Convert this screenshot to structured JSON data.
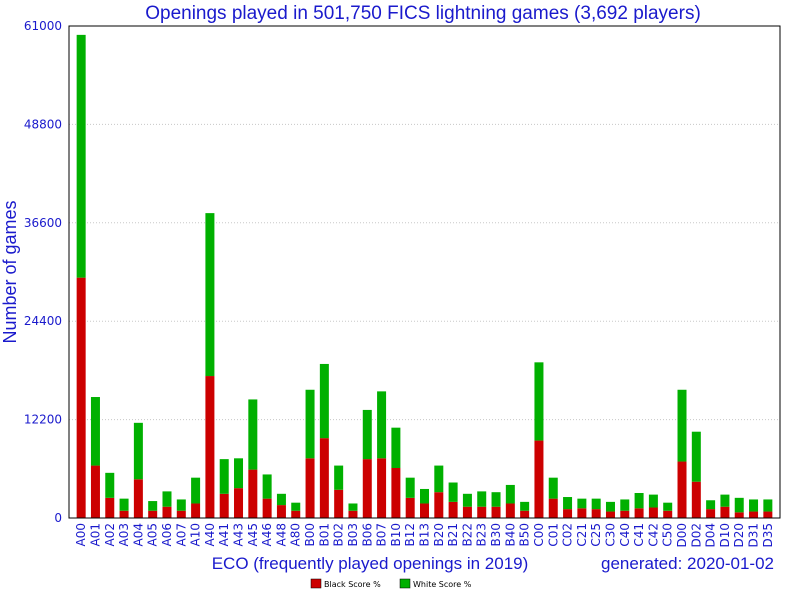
{
  "chart_data": {
    "type": "bar",
    "stacked": true,
    "title": "Openings played in 501,750 FICS lightning games (3,692 players)",
    "xlabel": "ECO (frequently played openings in 2019)",
    "ylabel": "Number of games",
    "generated": "generated: 2020-01-02",
    "ylim": [
      0,
      61000
    ],
    "yticks": [
      "0",
      "12200",
      "24400",
      "36600",
      "48800",
      "61000"
    ],
    "legend_position": "bottom-center",
    "categories": [
      "A00",
      "A01",
      "A02",
      "A03",
      "A04",
      "A05",
      "A06",
      "A07",
      "A10",
      "A40",
      "A41",
      "A43",
      "A45",
      "A46",
      "A48",
      "A80",
      "B00",
      "B01",
      "B02",
      "B03",
      "B06",
      "B07",
      "B10",
      "B12",
      "B13",
      "B20",
      "B21",
      "B22",
      "B23",
      "B30",
      "B40",
      "B50",
      "C00",
      "C01",
      "C02",
      "C21",
      "C25",
      "C30",
      "C40",
      "C41",
      "C42",
      "C50",
      "D00",
      "D02",
      "D04",
      "D10",
      "D20",
      "D31",
      "D35"
    ],
    "series": [
      {
        "name": "Black Score %",
        "color": "#cc0000",
        "values": [
          29800,
          6500,
          2500,
          900,
          4800,
          900,
          1400,
          900,
          1800,
          17600,
          3000,
          3700,
          6000,
          2400,
          1600,
          900,
          7400,
          9900,
          3500,
          900,
          7300,
          7400,
          6200,
          2500,
          1800,
          3200,
          2000,
          1400,
          1400,
          1400,
          1800,
          900,
          9600,
          2400,
          1100,
          1200,
          1100,
          800,
          900,
          1200,
          1300,
          900,
          7000,
          4500,
          1100,
          1400,
          700,
          800,
          800
        ]
      },
      {
        "name": "White Score %",
        "color": "#00b000",
        "values": [
          30100,
          8500,
          3100,
          1500,
          7000,
          1200,
          1900,
          1400,
          3200,
          20200,
          4300,
          3700,
          8700,
          3000,
          1400,
          1000,
          8500,
          9200,
          3000,
          900,
          6100,
          8300,
          5000,
          2500,
          1800,
          3300,
          2400,
          1600,
          1900,
          1800,
          2300,
          1100,
          9700,
          2600,
          1500,
          1200,
          1300,
          1200,
          1400,
          1900,
          1600,
          1000,
          8900,
          6200,
          1100,
          1500,
          1800,
          1500,
          1500
        ]
      }
    ]
  }
}
